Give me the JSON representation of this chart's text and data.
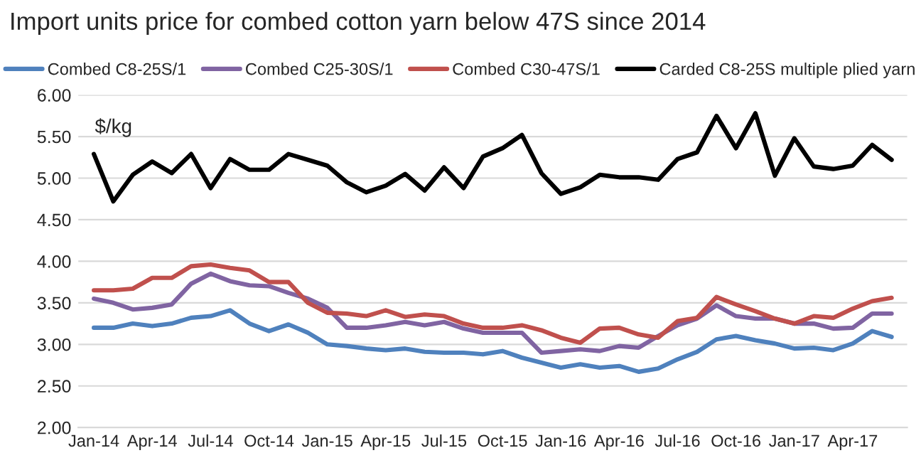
{
  "chart_data": {
    "type": "line",
    "title": "Import units price for combed cotton yarn below 47S since 2014",
    "annotations": [
      "$/kg"
    ],
    "categories": [
      "Jan-14",
      null,
      null,
      "Apr-14",
      null,
      null,
      "Jul-14",
      null,
      null,
      "Oct-14",
      null,
      null,
      "Jan-15",
      null,
      null,
      "Apr-15",
      null,
      null,
      "Jul-15",
      null,
      null,
      "Oct-15",
      null,
      null,
      "Jan-16",
      null,
      null,
      "Apr-16",
      null,
      null,
      "Jul-16",
      null,
      null,
      "Oct-16",
      null,
      null,
      "Jan-17",
      null,
      null,
      "Apr-17",
      null,
      null
    ],
    "series": [
      {
        "name": "Combed C8-25S/1",
        "color": "#4f81bd",
        "values": [
          3.2,
          3.2,
          3.25,
          3.22,
          3.25,
          3.32,
          3.34,
          3.41,
          3.25,
          3.16,
          3.24,
          3.14,
          3.0,
          2.98,
          2.95,
          2.93,
          2.95,
          2.91,
          2.9,
          2.9,
          2.88,
          2.92,
          2.84,
          2.78,
          2.72,
          2.76,
          2.72,
          2.74,
          2.67,
          2.71,
          2.82,
          2.91,
          3.06,
          3.1,
          3.05,
          3.01,
          2.95,
          2.96,
          2.93,
          3.01,
          3.16,
          3.09
        ]
      },
      {
        "name": "Combed C25-30S/1",
        "color": "#8064a2",
        "values": [
          3.55,
          3.5,
          3.42,
          3.44,
          3.48,
          3.73,
          3.85,
          3.76,
          3.71,
          3.7,
          3.62,
          3.55,
          3.44,
          3.2,
          3.2,
          3.23,
          3.27,
          3.23,
          3.27,
          3.19,
          3.14,
          3.14,
          3.14,
          2.9,
          2.92,
          2.94,
          2.92,
          2.98,
          2.96,
          3.1,
          3.23,
          3.31,
          3.47,
          3.34,
          3.31,
          3.31,
          3.25,
          3.25,
          3.19,
          3.2,
          3.37,
          3.37
        ]
      },
      {
        "name": "Combed C30-47S/1",
        "color": "#c0504d",
        "values": [
          3.65,
          3.65,
          3.67,
          3.8,
          3.8,
          3.94,
          3.96,
          3.92,
          3.89,
          3.75,
          3.75,
          3.5,
          3.38,
          3.37,
          3.34,
          3.41,
          3.33,
          3.36,
          3.34,
          3.25,
          3.2,
          3.2,
          3.23,
          3.17,
          3.08,
          3.02,
          3.19,
          3.2,
          3.12,
          3.08,
          3.28,
          3.32,
          3.57,
          3.48,
          3.4,
          3.31,
          3.25,
          3.34,
          3.32,
          3.43,
          3.52,
          3.56
        ]
      },
      {
        "name": "Carded C8-25S multiple plied yarn",
        "color": "#000000",
        "values": [
          5.29,
          4.72,
          5.04,
          5.2,
          5.06,
          5.29,
          4.88,
          5.23,
          5.1,
          5.1,
          5.29,
          5.22,
          5.15,
          4.95,
          4.83,
          4.91,
          5.05,
          4.85,
          5.13,
          4.88,
          5.26,
          5.36,
          5.52,
          5.06,
          4.81,
          4.89,
          5.04,
          5.01,
          5.01,
          4.98,
          5.23,
          5.31,
          5.75,
          5.36,
          5.78,
          5.03,
          5.48,
          5.14,
          5.11,
          5.15,
          5.4,
          5.22
        ]
      }
    ],
    "ylim": [
      2.0,
      6.0
    ],
    "yticks": [
      {
        "value": 2,
        "label": "2.00"
      },
      {
        "value": 2.5,
        "label": "2.50"
      },
      {
        "value": 3,
        "label": "3.00"
      },
      {
        "value": 3.5,
        "label": "3.50"
      },
      {
        "value": 4,
        "label": "4.00"
      },
      {
        "value": 4.5,
        "label": "4.50"
      },
      {
        "value": 5,
        "label": "5.00"
      },
      {
        "value": 5.5,
        "label": "5.50"
      },
      {
        "value": 6,
        "label": "6.00"
      }
    ],
    "grid": "y",
    "legend": "top",
    "marker": "none",
    "line_style": "solid"
  }
}
